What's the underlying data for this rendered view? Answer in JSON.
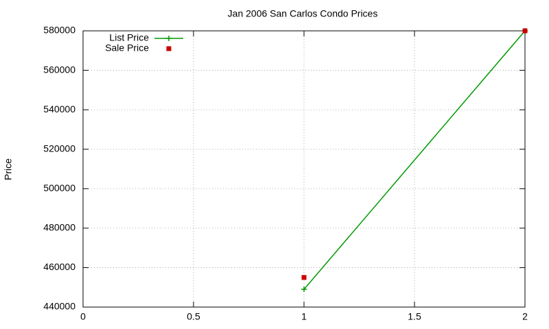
{
  "chart_data": {
    "type": "line",
    "title": "Jan 2006 San Carlos Condo Prices",
    "ylabel": "Price",
    "x": [
      1,
      2
    ],
    "series": [
      {
        "name": "List Price",
        "color": "#009900",
        "style": "linespoints",
        "marker": "plus",
        "values": [
          449000,
          580000
        ]
      },
      {
        "name": "Sale Price",
        "color": "#cc0000",
        "style": "points",
        "marker": "square",
        "values": [
          455000,
          580000
        ]
      }
    ],
    "xlim": [
      0,
      2
    ],
    "xticks": [
      0,
      0.5,
      1,
      1.5,
      2
    ],
    "ylim": [
      440000,
      580000
    ],
    "yticks": [
      440000,
      460000,
      480000,
      500000,
      520000,
      540000,
      560000,
      580000
    ],
    "grid": true,
    "legend": "top-left"
  }
}
